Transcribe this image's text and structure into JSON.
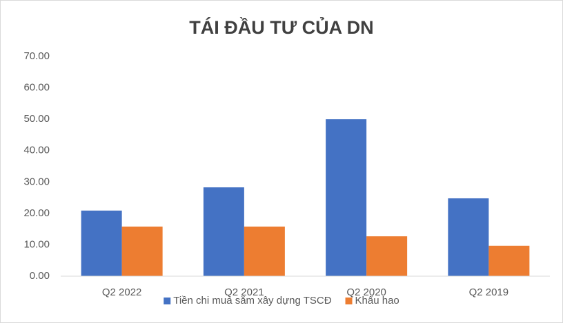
{
  "chart_data": {
    "type": "bar",
    "title": "TÁI ĐẦU TƯ CỦA DN",
    "categories": [
      "Q2 2022",
      "Q2 2021",
      "Q2 2020",
      "Q2 2019"
    ],
    "series": [
      {
        "name": "Tiền chi mua sắm xây dựng TSCĐ",
        "color": "#4472c4",
        "values": [
          20.9,
          28.3,
          50.0,
          24.8
        ]
      },
      {
        "name": "Khấu hao",
        "color": "#ed7d31",
        "values": [
          15.8,
          15.8,
          12.7,
          9.7
        ]
      }
    ],
    "ylim": [
      0,
      70
    ],
    "yticks": [
      {
        "value": 0,
        "label": "0.00"
      },
      {
        "value": 10,
        "label": "10.00"
      },
      {
        "value": 20,
        "label": "20.00"
      },
      {
        "value": 30,
        "label": "30.00"
      },
      {
        "value": 40,
        "label": "40.00"
      },
      {
        "value": 50,
        "label": "50.00"
      },
      {
        "value": 60,
        "label": "60.00"
      },
      {
        "value": 70,
        "label": "70.00"
      }
    ],
    "grid": false,
    "legend": "bottom"
  }
}
